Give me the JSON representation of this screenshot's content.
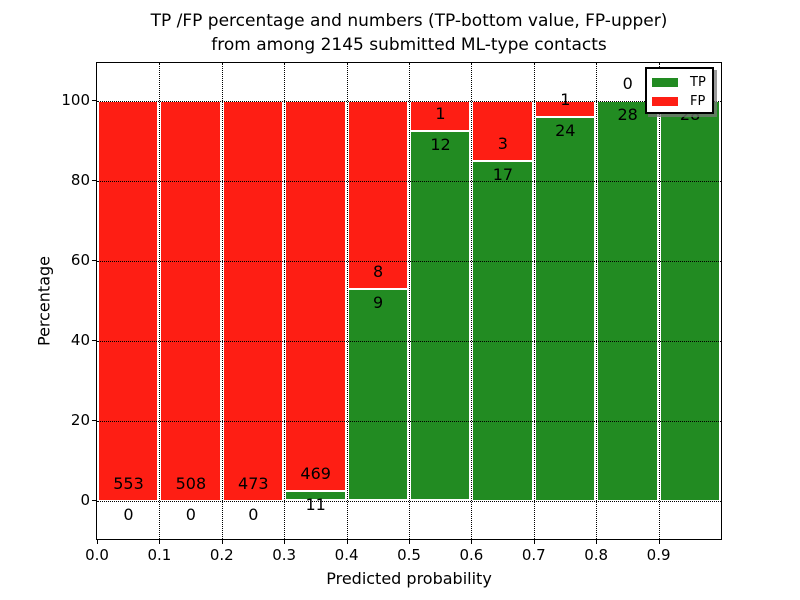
{
  "chart_data": {
    "type": "bar",
    "stacked": true,
    "normalized_to_percent": true,
    "title_line1": "TP /FP percentage and numbers (TP-bottom value, FP-upper)",
    "title_line2": "from among 2145 submitted ML-type contacts",
    "total_contacts": 2145,
    "xlabel": "Predicted probability",
    "ylabel": "Percentage",
    "x_tick_labels": [
      "0.0",
      "0.1",
      "0.2",
      "0.3",
      "0.4",
      "0.5",
      "0.6",
      "0.7",
      "0.8",
      "0.9"
    ],
    "y_tick_values": [
      0,
      20,
      40,
      60,
      80,
      100
    ],
    "xlim": [
      0.0,
      1.0
    ],
    "ylim": [
      -10.5,
      109.5
    ],
    "bin_edges": [
      0.0,
      0.1,
      0.2,
      0.3,
      0.4,
      0.5,
      0.6,
      0.7,
      0.8,
      0.9,
      1.0
    ],
    "series": [
      {
        "name": "TP",
        "color": "#228b22",
        "counts": [
          0,
          0,
          0,
          11,
          9,
          12,
          17,
          24,
          28,
          28
        ],
        "pct": [
          0,
          0,
          0,
          2.29,
          52.94,
          92.31,
          85.0,
          96.0,
          100.0,
          100.0
        ]
      },
      {
        "name": "FP",
        "color": "#fe1e14",
        "counts": [
          553,
          508,
          473,
          469,
          8,
          1,
          3,
          1,
          0,
          0
        ],
        "pct": [
          100,
          100,
          100,
          97.71,
          47.06,
          7.69,
          15.0,
          4.0,
          0.0,
          0.0
        ]
      }
    ],
    "legend": {
      "position": "upper right",
      "items": [
        {
          "label": "TP",
          "color": "#228b22"
        },
        {
          "label": "FP",
          "color": "#fe1e14"
        }
      ]
    },
    "grid": {
      "style": "dotted",
      "color": "#000000"
    },
    "axis_color": "#000000",
    "background_color": "#ffffff"
  }
}
